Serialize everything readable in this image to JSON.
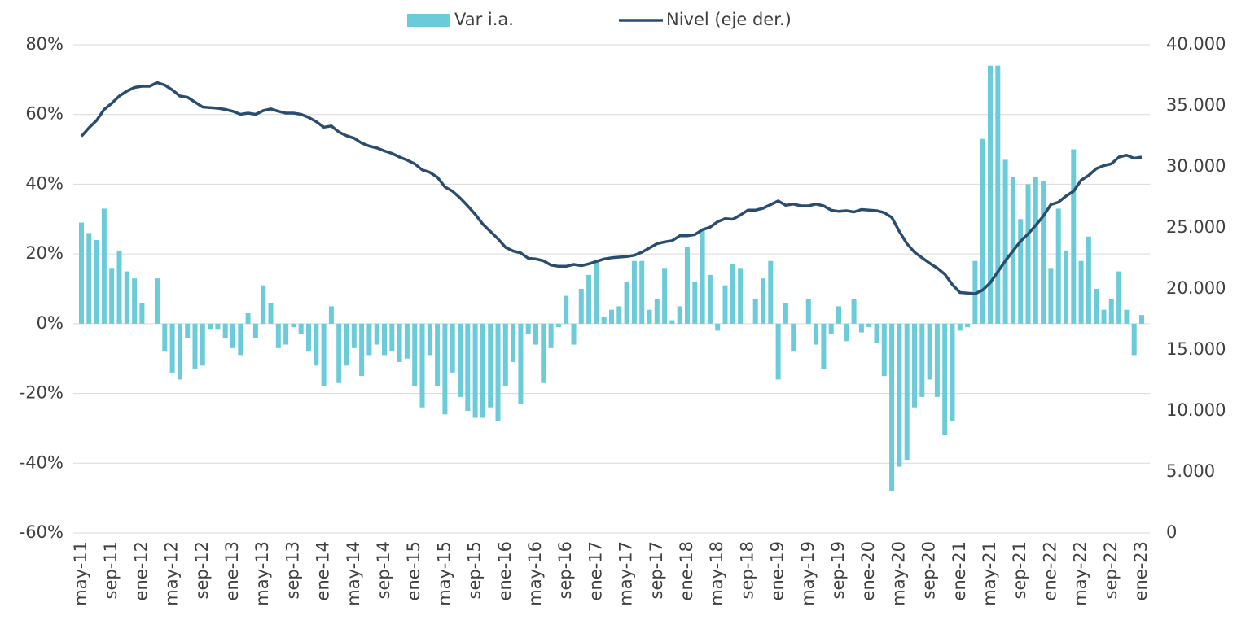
{
  "chart_data": {
    "type": "bar_line",
    "categories": [
      "may-11",
      null,
      null,
      null,
      "sep-11",
      null,
      null,
      null,
      "ene-12",
      null,
      null,
      null,
      "may-12",
      null,
      null,
      null,
      "sep-12",
      null,
      null,
      null,
      "ene-13",
      null,
      null,
      null,
      "may-13",
      null,
      null,
      null,
      "sep-13",
      null,
      null,
      null,
      "ene-14",
      null,
      null,
      null,
      "may-14",
      null,
      null,
      null,
      "sep-14",
      null,
      null,
      null,
      "ene-15",
      null,
      null,
      null,
      "may-15",
      null,
      null,
      null,
      "sep-15",
      null,
      null,
      null,
      "ene-16",
      null,
      null,
      null,
      "may-16",
      null,
      null,
      null,
      "sep-16",
      null,
      null,
      null,
      "ene-17",
      null,
      null,
      null,
      "may-17",
      null,
      null,
      null,
      "sep-17",
      null,
      null,
      null,
      "ene-18",
      null,
      null,
      null,
      "may-18",
      null,
      null,
      null,
      "sep-18",
      null,
      null,
      null,
      "ene-19",
      null,
      null,
      null,
      "may-19",
      null,
      null,
      null,
      "sep-19",
      null,
      null,
      null,
      "ene-20",
      null,
      null,
      null,
      "may-20",
      null,
      null,
      null,
      "sep-20",
      null,
      null,
      null,
      "ene-21",
      null,
      null,
      null,
      "may-21",
      null,
      null,
      null,
      "sep-21",
      null,
      null,
      null,
      "ene-22",
      null,
      null,
      null,
      "may-22",
      null,
      null,
      null,
      "sep-22",
      null,
      null,
      null,
      "ene-23"
    ],
    "series": [
      {
        "name": "Var i.a.",
        "type": "bar",
        "color": "#6ccbd9",
        "values": [
          29,
          26,
          24,
          33,
          16,
          21,
          15,
          13,
          6,
          0,
          13,
          -8,
          -14,
          -16,
          -4,
          -13,
          -12,
          -1.5,
          -1.5,
          -4,
          -7,
          -9,
          3,
          -4,
          11,
          6,
          -7,
          -6,
          -1,
          -3,
          -8,
          -12,
          -18,
          5,
          -17,
          -12,
          -7,
          -15,
          -9,
          -6,
          -9,
          -8,
          -11,
          -10,
          -18,
          -24,
          -9,
          -18,
          -26,
          -14,
          -21,
          -25,
          -27,
          -27,
          -24,
          -28,
          -18,
          -11,
          -23,
          -3,
          -6,
          -17,
          -7,
          -1,
          8,
          -6,
          10,
          14,
          18,
          2,
          4,
          5,
          12,
          18,
          18,
          4,
          7,
          16,
          1,
          5,
          22,
          12,
          27,
          14,
          -2,
          11,
          17,
          16,
          0,
          7,
          13,
          18,
          -16,
          6,
          -8,
          0,
          7,
          -6,
          -13,
          -3,
          5,
          -5,
          7,
          -2.5,
          -1,
          -5.5,
          -15,
          -48,
          -41,
          -39,
          -24,
          -21,
          -16,
          -21,
          -32,
          -28,
          -2,
          -1,
          18,
          53,
          74,
          74,
          47,
          42,
          30,
          40,
          42,
          41,
          16,
          33,
          21,
          50,
          18,
          25,
          10,
          4,
          7,
          15,
          4,
          -9,
          2.5
        ]
      },
      {
        "name": "Nivel (eje der.)",
        "type": "line",
        "axis": "y2",
        "color": "#2a4d6e",
        "values": [
          32500,
          33200,
          33800,
          34700,
          35200,
          35800,
          36200,
          36500,
          36600,
          36600,
          36900,
          36700,
          36300,
          35800,
          35700,
          35300,
          34900,
          34850,
          34800,
          34700,
          34550,
          34300,
          34400,
          34300,
          34600,
          34750,
          34550,
          34400,
          34400,
          34300,
          34050,
          33700,
          33250,
          33350,
          32850,
          32550,
          32350,
          31950,
          31700,
          31550,
          31300,
          31100,
          30800,
          30550,
          30250,
          29750,
          29550,
          29150,
          28350,
          28000,
          27450,
          26800,
          26100,
          25300,
          24700,
          24100,
          23400,
          23100,
          22950,
          22500,
          22450,
          22300,
          21950,
          21850,
          21850,
          22000,
          21900,
          22050,
          22250,
          22450,
          22550,
          22600,
          22650,
          22750,
          23000,
          23350,
          23700,
          23850,
          23950,
          24350,
          24350,
          24450,
          24850,
          25050,
          25500,
          25750,
          25700,
          26050,
          26450,
          26450,
          26600,
          26900,
          27200,
          26850,
          26950,
          26800,
          26800,
          26950,
          26800,
          26450,
          26350,
          26400,
          26300,
          26500,
          26450,
          26400,
          26250,
          25850,
          24700,
          23700,
          23000,
          22550,
          22100,
          21700,
          21200,
          20350,
          19700,
          19650,
          19600,
          19900,
          20500,
          21400,
          22300,
          23100,
          23900,
          24500,
          25200,
          25950,
          26900,
          27100,
          27600,
          28000,
          28900,
          29300,
          29850,
          30100,
          30250,
          30800,
          30950,
          30700,
          30800
        ]
      }
    ],
    "ylim": [
      -60,
      80
    ],
    "yticks": [
      {
        "value": -60,
        "label": "-60%"
      },
      {
        "value": -40,
        "label": "-40%"
      },
      {
        "value": -20,
        "label": "-20%"
      },
      {
        "value": 0,
        "label": "0%"
      },
      {
        "value": 20,
        "label": "20%"
      },
      {
        "value": 40,
        "label": "40%"
      },
      {
        "value": 60,
        "label": "60%"
      },
      {
        "value": 80,
        "label": "80%"
      }
    ],
    "y2lim": [
      0,
      40000
    ],
    "y2ticks": [
      0,
      {
        "value": 5000,
        "label": "5.000"
      },
      {
        "value": 10000,
        "label": "10.000"
      },
      {
        "value": 15000,
        "label": "15.000"
      },
      {
        "value": 20000,
        "label": "20.000"
      },
      {
        "value": 25000,
        "label": "25.000"
      },
      {
        "value": 30000,
        "label": "30.000"
      },
      {
        "value": 35000,
        "label": "35.000"
      },
      {
        "value": 40000,
        "label": "40.000"
      }
    ],
    "grid": true,
    "legend": "top"
  }
}
